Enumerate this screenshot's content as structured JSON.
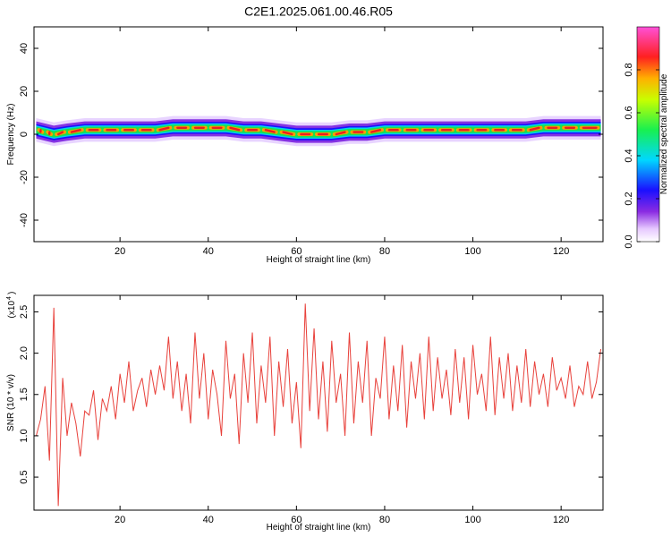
{
  "title": "C2E1.2025.061.00.46.R05",
  "chart_data": [
    {
      "type": "heatmap",
      "xlabel": "Height of straight line (km)",
      "ylabel": "Frequency (Hz)",
      "xlim": [
        0.5,
        129.5
      ],
      "ylim": [
        -50,
        50
      ],
      "xticks": [
        20,
        40,
        60,
        80,
        100,
        120
      ],
      "yticks": [
        -40,
        -20,
        0,
        20,
        40
      ],
      "colorbar": {
        "label": "Normalized spectral amplitude",
        "range": [
          0,
          1
        ],
        "ticks": [
          0.0,
          0.2,
          0.4,
          0.6,
          0.8
        ]
      },
      "ridge": {
        "x": [
          1,
          3,
          5,
          8,
          12,
          16,
          20,
          24,
          28,
          32,
          36,
          40,
          44,
          48,
          52,
          56,
          60,
          64,
          68,
          72,
          76,
          80,
          84,
          88,
          92,
          96,
          100,
          104,
          108,
          112,
          116,
          120,
          124,
          129
        ],
        "freq": [
          2,
          1,
          0,
          1,
          2,
          2,
          2,
          2,
          2,
          3,
          3,
          3,
          3,
          2,
          2,
          1,
          0,
          0,
          0,
          1,
          1,
          2,
          2,
          2,
          2,
          2,
          2,
          2,
          2,
          2,
          3,
          3,
          3,
          3
        ],
        "core_halfwidth_hz": 1.5,
        "halo_halfwidth_hz": 4
      }
    },
    {
      "type": "line",
      "xlabel": "Height of straight line (km)",
      "ylabel": "SNR (10 * v/v)",
      "yscale_note": "(x10",
      "yscale_exp": "4",
      "xlim": [
        0.5,
        129.5
      ],
      "ylim": [
        0.1,
        2.7
      ],
      "xticks": [
        20,
        40,
        60,
        80,
        100,
        120
      ],
      "yticks": [
        0.5,
        1.0,
        1.5,
        2.0,
        2.5
      ],
      "series": [
        {
          "color": "#e8413b",
          "x": [
            1,
            2,
            3,
            4,
            5,
            6,
            7,
            8,
            9,
            10,
            11,
            12,
            13,
            14,
            15,
            16,
            17,
            18,
            19,
            20,
            21,
            22,
            23,
            24,
            25,
            26,
            27,
            28,
            29,
            30,
            31,
            32,
            33,
            34,
            35,
            36,
            37,
            38,
            39,
            40,
            41,
            42,
            43,
            44,
            45,
            46,
            47,
            48,
            49,
            50,
            51,
            52,
            53,
            54,
            55,
            56,
            57,
            58,
            59,
            60,
            61,
            62,
            63,
            64,
            65,
            66,
            67,
            68,
            69,
            70,
            71,
            72,
            73,
            74,
            75,
            76,
            77,
            78,
            79,
            80,
            81,
            82,
            83,
            84,
            85,
            86,
            87,
            88,
            89,
            90,
            91,
            92,
            93,
            94,
            95,
            96,
            97,
            98,
            99,
            100,
            101,
            102,
            103,
            104,
            105,
            106,
            107,
            108,
            109,
            110,
            111,
            112,
            113,
            114,
            115,
            116,
            117,
            118,
            119,
            120,
            121,
            122,
            123,
            124,
            125,
            126,
            127,
            128,
            129
          ],
          "y": [
            1.0,
            1.2,
            1.6,
            0.7,
            2.55,
            0.15,
            1.7,
            1.0,
            1.4,
            1.15,
            0.75,
            1.3,
            1.25,
            1.55,
            0.95,
            1.45,
            1.3,
            1.6,
            1.2,
            1.75,
            1.4,
            1.9,
            1.3,
            1.55,
            1.7,
            1.35,
            1.8,
            1.5,
            1.85,
            1.55,
            2.2,
            1.45,
            1.9,
            1.3,
            1.75,
            1.15,
            2.25,
            1.45,
            2.0,
            1.2,
            1.8,
            1.5,
            1.0,
            2.15,
            1.45,
            1.75,
            0.9,
            2.0,
            1.4,
            2.25,
            1.15,
            1.85,
            1.4,
            2.2,
            1.0,
            1.9,
            1.35,
            2.05,
            1.15,
            1.65,
            0.85,
            2.6,
            1.3,
            2.3,
            1.2,
            1.9,
            1.05,
            2.15,
            1.4,
            1.75,
            1.0,
            2.25,
            1.15,
            1.9,
            1.4,
            2.15,
            1.0,
            1.7,
            1.45,
            2.2,
            1.2,
            1.85,
            1.3,
            2.1,
            1.1,
            1.9,
            1.45,
            2.0,
            1.2,
            2.2,
            1.3,
            1.95,
            1.45,
            1.8,
            1.25,
            2.05,
            1.4,
            1.95,
            1.2,
            2.1,
            1.5,
            1.75,
            1.3,
            2.2,
            1.25,
            1.95,
            1.45,
            2.0,
            1.3,
            1.85,
            1.4,
            2.05,
            1.35,
            1.9,
            1.5,
            1.75,
            1.35,
            1.95,
            1.55,
            1.7,
            1.45,
            1.85,
            1.35,
            1.6,
            1.5,
            1.9,
            1.45,
            1.65,
            2.05
          ]
        }
      ]
    }
  ]
}
